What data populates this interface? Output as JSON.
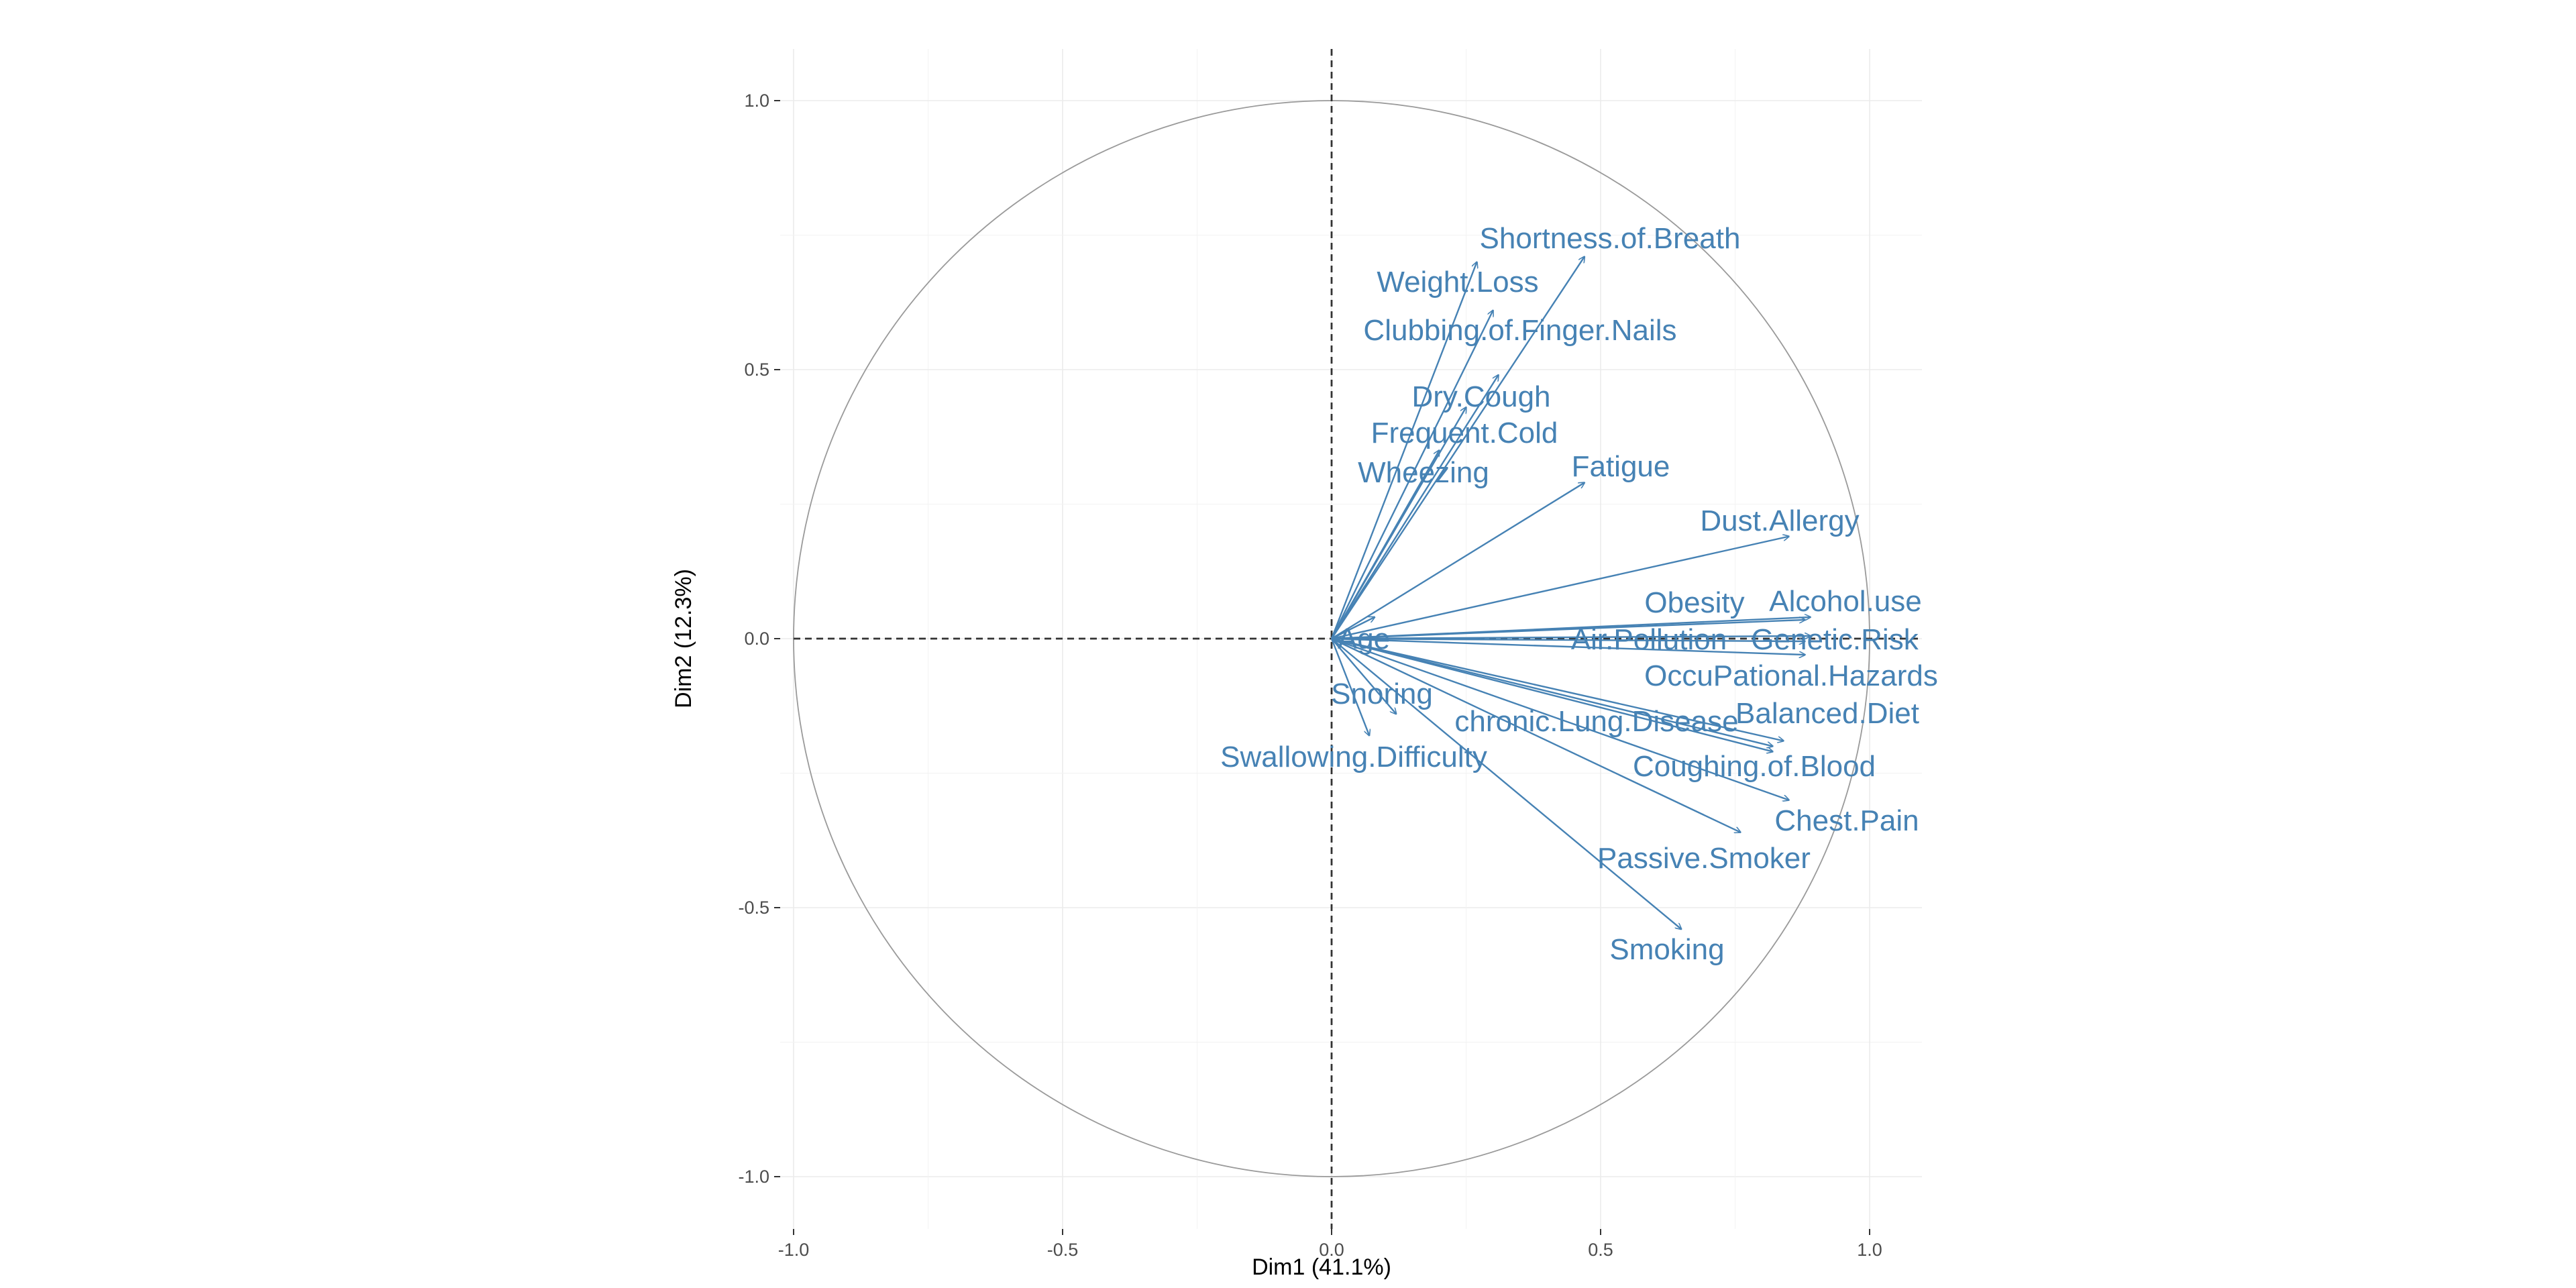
{
  "chart_data": {
    "type": "pca-variables",
    "xlabel": "Dim1 (41.1%)",
    "ylabel": "Dim2 (12.3%)",
    "xlim": [
      -1.1,
      1.1
    ],
    "ylim": [
      -1.1,
      1.1
    ],
    "x_ticks": [
      -1.0,
      -0.5,
      0.0,
      0.5,
      1.0
    ],
    "y_ticks": [
      -1.0,
      -0.5,
      0.0,
      0.5,
      1.0
    ],
    "x_tick_labels": [
      "-1.0",
      "-0.5",
      "0.0",
      "0.5",
      "1.0"
    ],
    "y_tick_labels": [
      "-1.0",
      "-0.5",
      "0.0",
      "0.5",
      "1.0"
    ],
    "grid": true,
    "unit_circle": true,
    "arrow_color": "#4682b4",
    "variables": [
      {
        "name": "Shortness.of.Breath",
        "x": 0.47,
        "y": 0.71
      },
      {
        "name": "Weight.Loss",
        "x": 0.27,
        "y": 0.7
      },
      {
        "name": "Clubbing.of.Finger.Nails",
        "x": 0.3,
        "y": 0.61
      },
      {
        "name": "Dry.Cough",
        "x": 0.31,
        "y": 0.49
      },
      {
        "name": "Frequent.Cold",
        "x": 0.25,
        "y": 0.43
      },
      {
        "name": "Wheezing",
        "x": 0.2,
        "y": 0.35
      },
      {
        "name": "Fatigue",
        "x": 0.47,
        "y": 0.29
      },
      {
        "name": "Dust.Allergy",
        "x": 0.85,
        "y": 0.19
      },
      {
        "name": "Obesity",
        "x": 0.88,
        "y": 0.035
      },
      {
        "name": "Alcohol.use",
        "x": 0.89,
        "y": 0.04
      },
      {
        "name": "Air.Pollution",
        "x": 0.88,
        "y": -0.005
      },
      {
        "name": "Genetic.Risk",
        "x": 0.89,
        "y": 0.005
      },
      {
        "name": "OccuPational.Hazards",
        "x": 0.88,
        "y": -0.03
      },
      {
        "name": "Balanced.Diet",
        "x": 0.84,
        "y": -0.19
      },
      {
        "name": "chronic.Lung.Disease",
        "x": 0.82,
        "y": -0.2
      },
      {
        "name": "Coughing.of.Blood",
        "x": 0.85,
        "y": -0.3
      },
      {
        "name": "Chest.Pain",
        "x": 0.82,
        "y": -0.21
      },
      {
        "name": "Passive.Smoker",
        "x": 0.76,
        "y": -0.36
      },
      {
        "name": "Smoking",
        "x": 0.65,
        "y": -0.54
      },
      {
        "name": "Age",
        "x": 0.08,
        "y": 0.04
      },
      {
        "name": "Snoring",
        "x": 0.12,
        "y": -0.14
      },
      {
        "name": "Swallowing.Difficulty",
        "x": 0.07,
        "y": -0.18
      }
    ]
  }
}
